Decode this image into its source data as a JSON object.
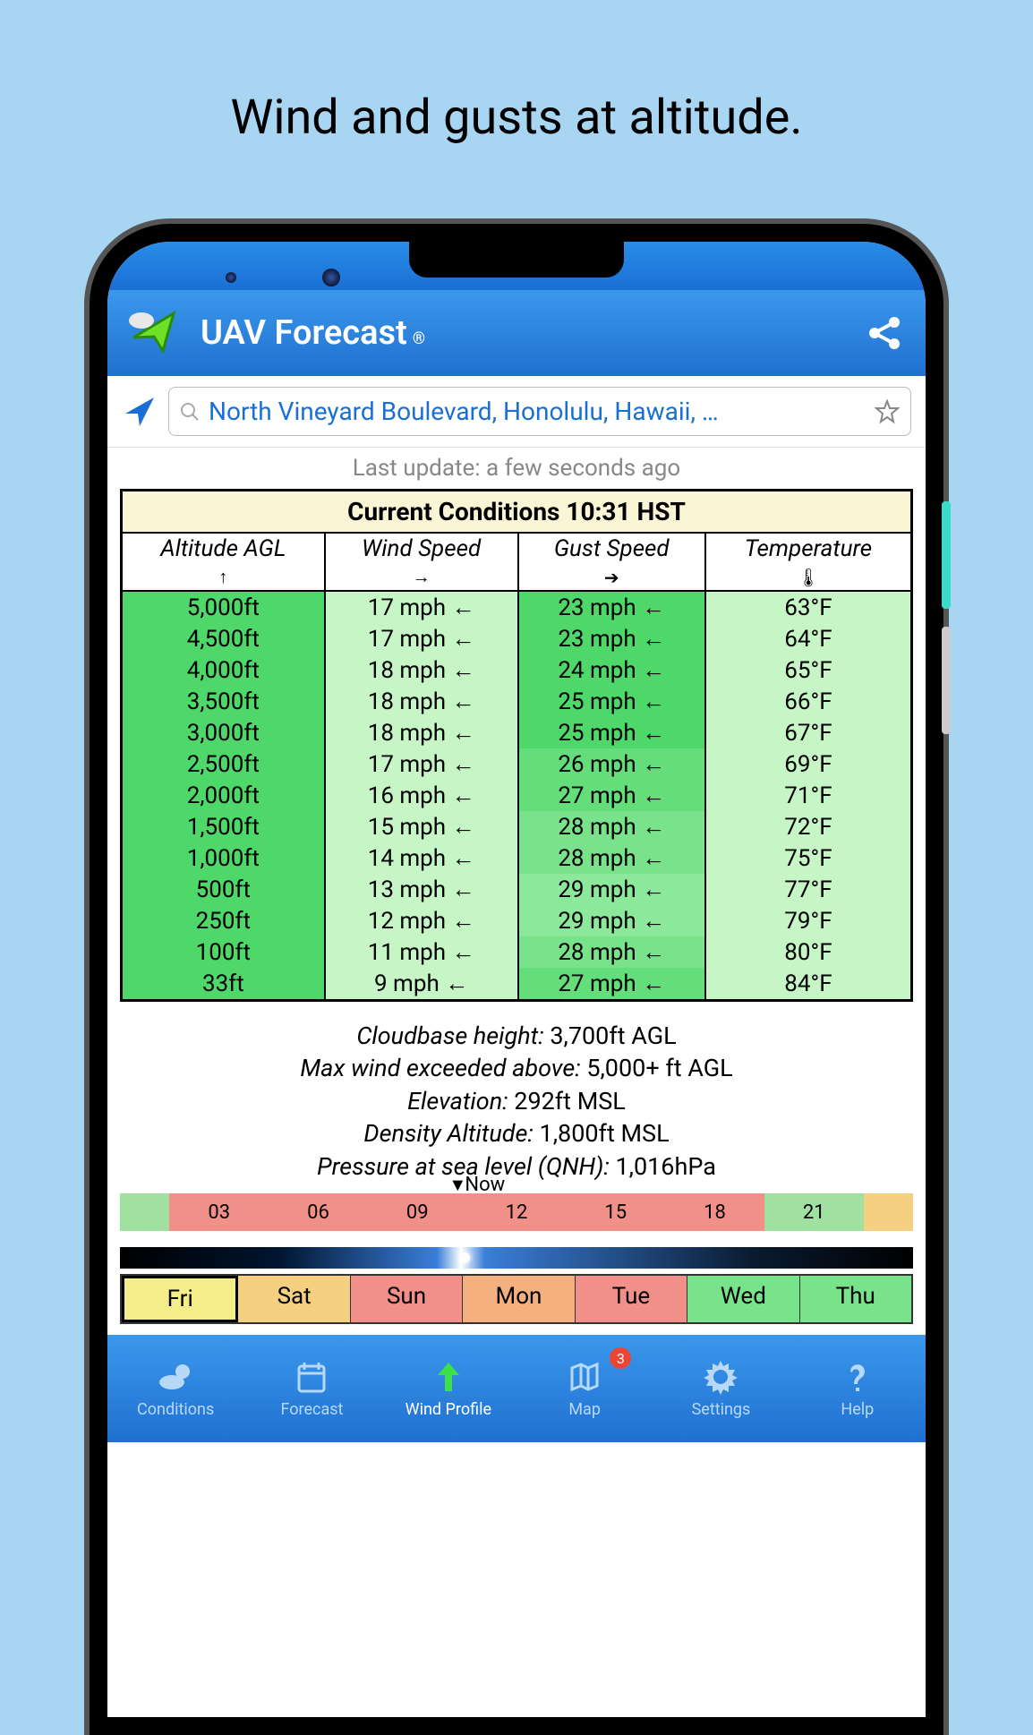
{
  "caption": "Wind and gusts at altitude.",
  "header": {
    "title": "UAV Forecast",
    "trademark": "®"
  },
  "search": {
    "text": "North Vineyard Boulevard, Honolulu, Hawaii, …"
  },
  "update_line": "Last update: a few seconds ago",
  "table": {
    "title": "Current Conditions 10:31 HST",
    "columns": [
      "Altitude AGL",
      "Wind Speed",
      "Gust Speed",
      "Temperature"
    ],
    "sort_icons": [
      "↑",
      "→",
      "➔",
      "🌡"
    ],
    "rows": [
      {
        "alt": "5,000ft",
        "wind": "17 mph ←",
        "gust": "23 mph ←",
        "temp": "63°F",
        "colors": [
          "#4fd86a",
          "#c6f5c6",
          "#4fd86a",
          "#c6f5c6"
        ]
      },
      {
        "alt": "4,500ft",
        "wind": "17 mph ←",
        "gust": "23 mph ←",
        "temp": "64°F",
        "colors": [
          "#4fd86a",
          "#c6f5c6",
          "#4fd86a",
          "#c6f5c6"
        ]
      },
      {
        "alt": "4,000ft",
        "wind": "18 mph ←",
        "gust": "24 mph ←",
        "temp": "65°F",
        "colors": [
          "#4fd86a",
          "#c6f5c6",
          "#4fd86a",
          "#c6f5c6"
        ]
      },
      {
        "alt": "3,500ft",
        "wind": "18 mph ←",
        "gust": "25 mph ←",
        "temp": "66°F",
        "colors": [
          "#4fd86a",
          "#c6f5c6",
          "#4fd86a",
          "#c6f5c6"
        ]
      },
      {
        "alt": "3,000ft",
        "wind": "18 mph ←",
        "gust": "25 mph ←",
        "temp": "67°F",
        "colors": [
          "#4fd86a",
          "#c6f5c6",
          "#4fd86a",
          "#c6f5c6"
        ]
      },
      {
        "alt": "2,500ft",
        "wind": "17 mph ←",
        "gust": "26 mph ←",
        "temp": "69°F",
        "colors": [
          "#4fd86a",
          "#c6f5c6",
          "#64de7a",
          "#c6f5c6"
        ]
      },
      {
        "alt": "2,000ft",
        "wind": "16 mph ←",
        "gust": "27 mph ←",
        "temp": "71°F",
        "colors": [
          "#4fd86a",
          "#c6f5c6",
          "#64de7a",
          "#c6f5c6"
        ]
      },
      {
        "alt": "1,500ft",
        "wind": "15 mph ←",
        "gust": "28 mph ←",
        "temp": "72°F",
        "colors": [
          "#4fd86a",
          "#c6f5c6",
          "#78e38a",
          "#c6f5c6"
        ]
      },
      {
        "alt": "1,000ft",
        "wind": "14 mph ←",
        "gust": "28 mph ←",
        "temp": "75°F",
        "colors": [
          "#4fd86a",
          "#c6f5c6",
          "#78e38a",
          "#c6f5c6"
        ]
      },
      {
        "alt": "500ft",
        "wind": "13 mph ←",
        "gust": "29 mph ←",
        "temp": "77°F",
        "colors": [
          "#4fd86a",
          "#c6f5c6",
          "#8ce89a",
          "#c6f5c6"
        ]
      },
      {
        "alt": "250ft",
        "wind": "12 mph ←",
        "gust": "29 mph ←",
        "temp": "79°F",
        "colors": [
          "#4fd86a",
          "#c6f5c6",
          "#8ce89a",
          "#c6f5c6"
        ]
      },
      {
        "alt": "100ft",
        "wind": "11 mph ←",
        "gust": "28 mph ←",
        "temp": "80°F",
        "colors": [
          "#4fd86a",
          "#c6f5c6",
          "#78e38a",
          "#c6f5c6"
        ]
      },
      {
        "alt": "33ft",
        "wind": "9 mph ←",
        "gust": "27 mph ←",
        "temp": "84°F",
        "colors": [
          "#4fd86a",
          "#c6f5c6",
          "#64de7a",
          "#c6f5c6"
        ]
      }
    ]
  },
  "info": [
    {
      "label": "Cloudbase height:",
      "value": "3,700ft AGL"
    },
    {
      "label": "Max wind exceeded above:",
      "value": "5,000+ ft AGL"
    },
    {
      "label": "Elevation:",
      "value": "292ft MSL"
    },
    {
      "label": "Density Altitude:",
      "value": "1,800ft MSL"
    },
    {
      "label": "Pressure at sea level (QNH):",
      "value": "1,016hPa"
    }
  ],
  "timeline": {
    "now_label": "Now",
    "hours": [
      {
        "label": "03",
        "color": "#f09088"
      },
      {
        "label": "06",
        "color": "#f09088"
      },
      {
        "label": "09",
        "color": "#f09088"
      },
      {
        "label": "12",
        "color": "#f09088"
      },
      {
        "label": "15",
        "color": "#f09088"
      },
      {
        "label": "18",
        "color": "#f09088"
      },
      {
        "label": "21",
        "color": "#a0e0a0"
      }
    ],
    "gradient_extra": [
      {
        "color": "#a0e0a0",
        "flex": 0.5
      },
      {
        "color": "#f5d080",
        "flex": 0.5
      }
    ]
  },
  "days": [
    {
      "label": "Fri",
      "color": "#f5ed8a"
    },
    {
      "label": "Sat",
      "color": "#f5d080"
    },
    {
      "label": "Sun",
      "color": "#f09088"
    },
    {
      "label": "Mon",
      "color": "#f5b080"
    },
    {
      "label": "Tue",
      "color": "#f09088"
    },
    {
      "label": "Wed",
      "color": "#78e38a"
    },
    {
      "label": "Thu",
      "color": "#78e38a"
    }
  ],
  "nav": {
    "items": [
      {
        "label": "Conditions",
        "active": false
      },
      {
        "label": "Forecast",
        "active": false
      },
      {
        "label": "Wind Profile",
        "active": true
      },
      {
        "label": "Map",
        "active": false,
        "badge": "3"
      },
      {
        "label": "Settings",
        "active": false
      },
      {
        "label": "Help",
        "active": false
      }
    ]
  }
}
